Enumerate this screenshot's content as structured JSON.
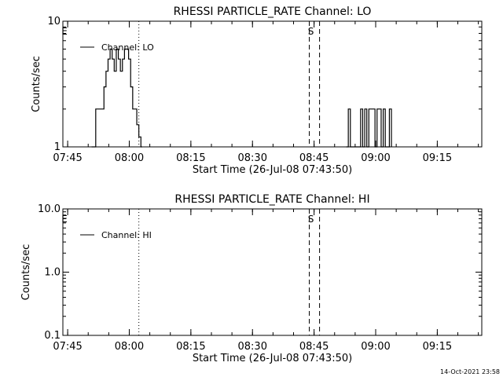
{
  "footer": {
    "timestamp": "14-Oct-2021 23:58"
  },
  "chart_data": [
    {
      "type": "line",
      "title": "RHESSI PARTICLE_RATE Channel: LO",
      "xlabel": "Start Time (26-Jul-08 07:43:50)",
      "ylabel": "Counts/sec",
      "yscale": "log",
      "ylim": [
        1,
        10
      ],
      "ytick_labels": [
        "1",
        "10"
      ],
      "xlim_minutes": [
        0,
        102
      ],
      "xtick_labels": [
        "07:45",
        "08:00",
        "08:15",
        "08:30",
        "08:45",
        "09:00",
        "09:15"
      ],
      "legend": {
        "label": "Channel: LO",
        "position": "top-left"
      },
      "markers": [
        {
          "label": "E",
          "minute": 0,
          "style": "dotted"
        },
        {
          "label": "",
          "minute": 18.5,
          "style": "dotted"
        },
        {
          "label": "S",
          "minute": 60,
          "style": "dashed"
        },
        {
          "label": "",
          "minute": 62.5,
          "style": "dashed"
        },
        {
          "label": "E",
          "minute": 102.5,
          "style": "dotted"
        },
        {
          "label": "",
          "minute": 120.5,
          "style": "dotted"
        }
      ],
      "series": [
        {
          "name": "Channel: LO",
          "x": [
            7.0,
            8.0,
            9.5,
            10.0,
            10.5,
            11.0,
            11.5,
            12.0,
            12.5,
            13.0,
            13.5,
            14.0,
            14.5,
            15.0,
            15.5,
            16.0,
            16.5,
            17.0,
            17.5,
            18.0,
            18.5,
            19.0,
            19.3,
            69.0,
            69.5,
            70.0,
            72.0,
            72.5,
            73.0,
            73.5,
            74.0,
            74.5,
            75.0,
            75.5,
            76.0,
            76.5,
            77.0,
            77.5,
            78.0,
            78.5,
            79.0,
            79.5,
            80.0
          ],
          "y": [
            1,
            2,
            2,
            3,
            4,
            5,
            6,
            5,
            4,
            6,
            5,
            4,
            5,
            6,
            6,
            5,
            3,
            2,
            2,
            1.5,
            1.2,
            1,
            1,
            1,
            2,
            1,
            1,
            2,
            1,
            2,
            1,
            2,
            2,
            2,
            1,
            2,
            2,
            1,
            2,
            1,
            1,
            2,
            1
          ]
        }
      ]
    },
    {
      "type": "line",
      "title": "RHESSI PARTICLE_RATE Channel: HI",
      "xlabel": "Start Time (26-Jul-08 07:43:50)",
      "ylabel": "Counts/sec",
      "yscale": "log",
      "ylim": [
        0.1,
        10
      ],
      "ytick_labels": [
        "0.1",
        "1.0",
        "10.0"
      ],
      "xlim_minutes": [
        0,
        102
      ],
      "xtick_labels": [
        "07:45",
        "08:00",
        "08:15",
        "08:30",
        "08:45",
        "09:00",
        "09:15"
      ],
      "legend": {
        "label": "Channel: HI",
        "position": "top-left"
      },
      "markers": [
        {
          "label": "E",
          "minute": 0,
          "style": "dotted"
        },
        {
          "label": "",
          "minute": 18.5,
          "style": "dotted"
        },
        {
          "label": "S",
          "minute": 60,
          "style": "dashed"
        },
        {
          "label": "",
          "minute": 62.5,
          "style": "dashed"
        },
        {
          "label": "E",
          "minute": 102.5,
          "style": "dotted"
        },
        {
          "label": "",
          "minute": 120.5,
          "style": "dotted"
        }
      ],
      "series": [
        {
          "name": "Channel: HI",
          "x": [],
          "y": []
        }
      ]
    }
  ]
}
